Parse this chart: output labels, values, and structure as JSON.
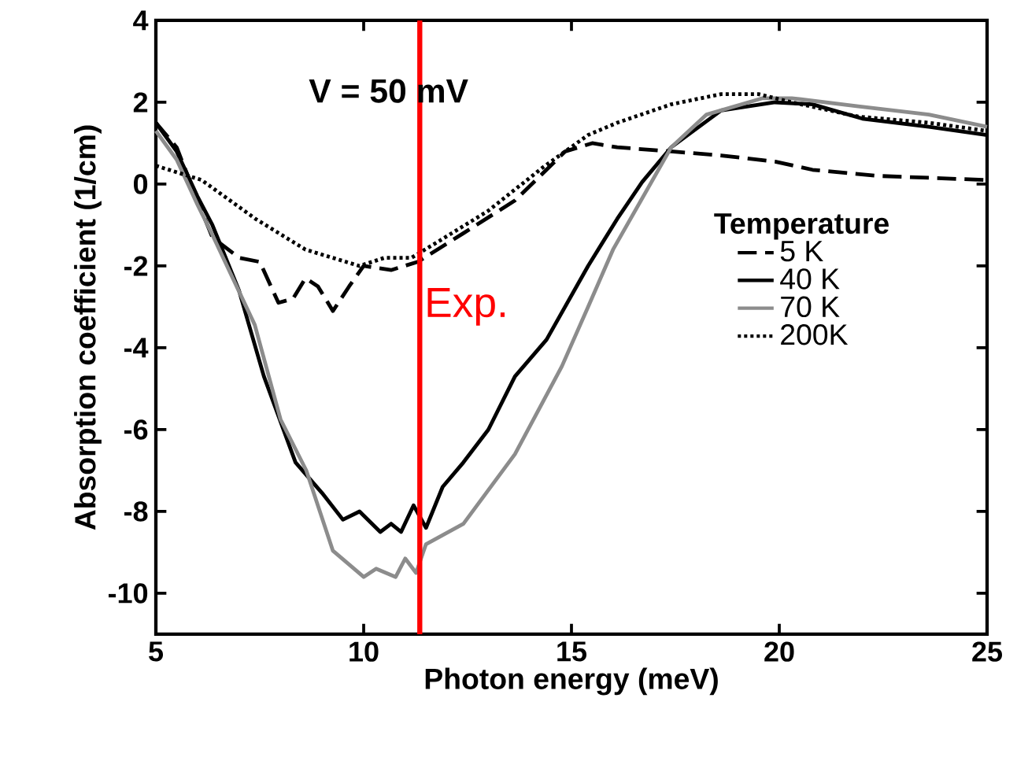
{
  "chart_data": {
    "type": "line",
    "xlabel": "Photon energy (meV)",
    "ylabel": "Absorption coefficient (1/cm)",
    "legend_title": "Temperature",
    "legend": "right",
    "annotations": [
      "V = 50 mV"
    ],
    "xlim": [
      5,
      25
    ],
    "xticks": [
      5,
      10,
      15,
      20,
      25
    ],
    "ylim": [
      -11,
      4
    ],
    "yticks": [
      -10,
      -8,
      -6,
      -4,
      -2,
      0,
      2,
      4
    ],
    "grid": false,
    "ref_lines": [
      {
        "axis": "x",
        "value": 11.35,
        "label": "Exp.",
        "color": "#ff0000"
      }
    ],
    "series": [
      {
        "name": "5 K",
        "color": "#000000",
        "line_style": "dashed",
        "x": [
          5.0,
          5.5,
          6.0,
          6.36,
          7.0,
          7.5,
          7.95,
          8.3,
          8.6,
          8.9,
          9.26,
          9.65,
          10.0,
          10.66,
          11.3,
          12.4,
          13.64,
          14.85,
          15.5,
          16.1,
          17.4,
          18.6,
          19.9,
          20.8,
          22.4,
          25.0
        ],
        "values": [
          1.5,
          0.9,
          -0.4,
          -1.3,
          -1.8,
          -1.9,
          -2.9,
          -2.8,
          -2.3,
          -2.5,
          -3.1,
          -2.5,
          -2.0,
          -2.1,
          -1.9,
          -1.2,
          -0.4,
          0.8,
          1.0,
          0.9,
          0.8,
          0.7,
          0.55,
          0.35,
          0.2,
          0.1
        ]
      },
      {
        "name": "40 K",
        "color": "#000000",
        "line_style": "solid",
        "x": [
          5.0,
          5.5,
          6.0,
          6.36,
          7.0,
          7.6,
          8.36,
          9.0,
          9.5,
          9.9,
          10.4,
          10.66,
          10.9,
          11.2,
          11.5,
          11.9,
          12.4,
          13.0,
          13.64,
          14.4,
          14.9,
          15.4,
          16.1,
          16.7,
          17.4,
          18.6,
          19.9,
          20.8,
          22.0,
          23.6,
          25.0
        ],
        "values": [
          1.5,
          0.8,
          -0.3,
          -1.0,
          -2.6,
          -4.7,
          -6.8,
          -7.55,
          -8.2,
          -8.0,
          -8.5,
          -8.3,
          -8.5,
          -7.85,
          -8.4,
          -7.4,
          -6.8,
          -6.0,
          -4.7,
          -3.8,
          -2.9,
          -2.0,
          -0.85,
          0.05,
          0.9,
          1.8,
          2.0,
          1.95,
          1.6,
          1.4,
          1.2
        ]
      },
      {
        "name": "70 K",
        "color": "#8c8c8c",
        "line_style": "solid",
        "x": [
          5.0,
          5.5,
          6.0,
          6.36,
          7.38,
          8.0,
          8.62,
          9.26,
          10.0,
          10.3,
          10.77,
          11.0,
          11.26,
          11.5,
          12.4,
          13.64,
          14.77,
          15.4,
          16.0,
          17.4,
          18.25,
          19.6,
          20.3,
          21.9,
          23.6,
          25.0
        ],
        "values": [
          1.3,
          0.6,
          -0.5,
          -1.24,
          -3.44,
          -5.75,
          -7.0,
          -8.96,
          -9.6,
          -9.4,
          -9.6,
          -9.15,
          -9.5,
          -8.8,
          -8.3,
          -6.6,
          -4.45,
          -3.0,
          -1.6,
          0.9,
          1.7,
          2.1,
          2.1,
          1.9,
          1.7,
          1.4
        ]
      },
      {
        "name": "200K",
        "color": "#000000",
        "line_style": "dotted",
        "x": [
          5.0,
          6.1,
          7.4,
          8.6,
          9.9,
          10.5,
          11.15,
          11.8,
          13.0,
          14.3,
          15.4,
          16.1,
          17.4,
          18.6,
          19.5,
          20.3,
          21.9,
          23.6,
          25.0
        ],
        "values": [
          0.45,
          0.1,
          -0.85,
          -1.6,
          -2.0,
          -1.8,
          -1.8,
          -1.4,
          -0.65,
          0.4,
          1.2,
          1.5,
          1.95,
          2.2,
          2.2,
          2.0,
          1.65,
          1.5,
          1.3
        ]
      }
    ]
  }
}
